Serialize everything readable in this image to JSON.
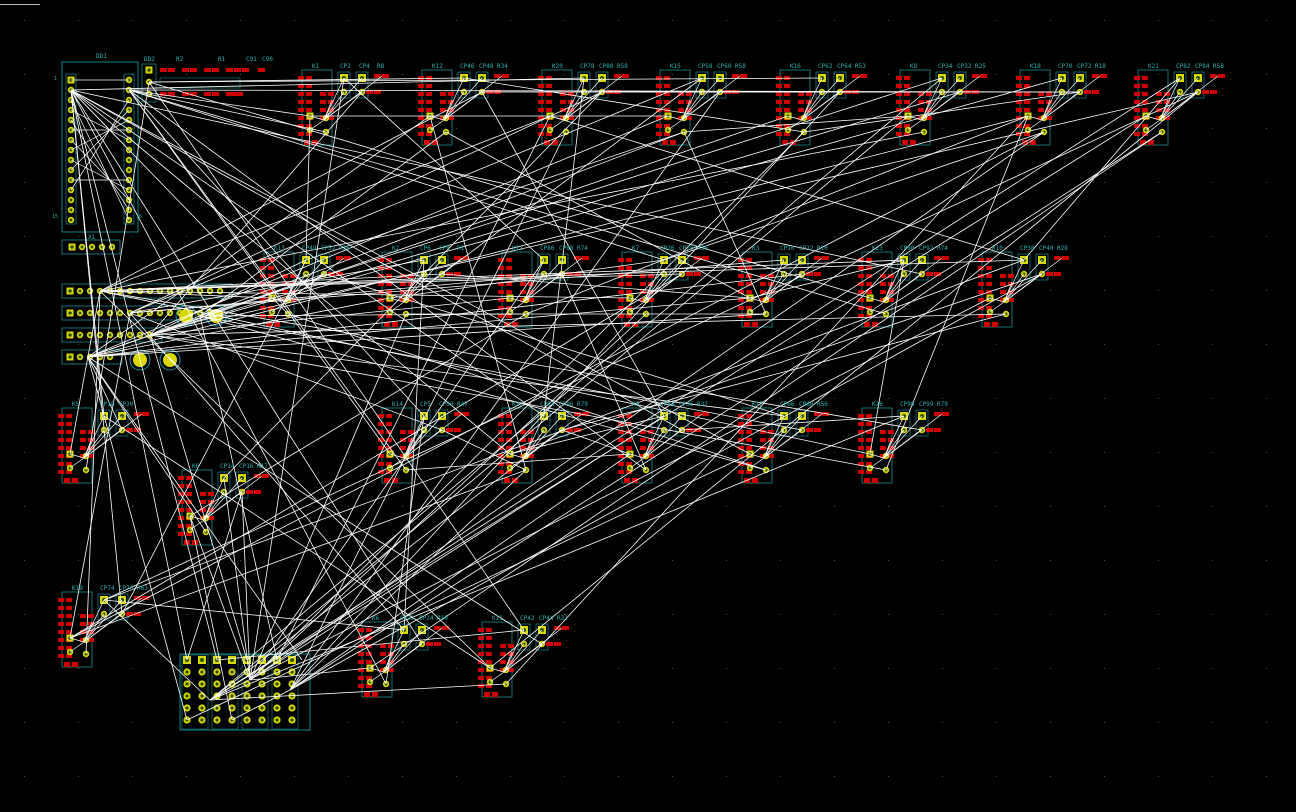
{
  "app": {
    "name": "PCB layout view"
  },
  "colors": {
    "background": "#000000",
    "pad": "#d8d800",
    "pad_center": "#2c5200",
    "smd_pad": "#d00000",
    "outline": "#1aa3a3",
    "ratsnest": "#ffffff",
    "label": "#29b3b3",
    "hole_ring": "#1a8fa0"
  },
  "header_labels": {
    "connector": "DD1",
    "pin_first": "1",
    "pin_last_left": "15",
    "pin_last_right": "16"
  },
  "connector_x1": {
    "label": "X1"
  },
  "row1": {
    "prefix_parts": [
      {
        "label": "DD2"
      },
      {
        "label": "R2"
      },
      {
        "label": "R1"
      },
      {
        "label": "C91"
      },
      {
        "label": "C90"
      }
    ],
    "blocks": [
      {
        "ref": "K1",
        "c1": "CP2",
        "c2": "CP4",
        "r": "R8"
      },
      {
        "ref": "K12",
        "c1": "CP46",
        "c2": "CP48",
        "r": "R34"
      },
      {
        "ref": "K20",
        "c1": "CP78",
        "c2": "CP80",
        "r": "R58"
      },
      {
        "ref": "K15",
        "c1": "CP58",
        "c2": "CP60",
        "r": "R58"
      },
      {
        "ref": "K16",
        "c1": "CP62",
        "c2": "CP64",
        "r": "R53"
      },
      {
        "ref": "K8",
        "c1": "CP34",
        "c2": "CP32",
        "r": "R25"
      },
      {
        "ref": "K18",
        "c1": "CP70",
        "c2": "CP72",
        "r": "R18"
      },
      {
        "ref": "K21",
        "c1": "CP82",
        "c2": "CP84",
        "r": "R58"
      }
    ]
  },
  "row2": {
    "blocks": [
      {
        "ref": "K13",
        "c1": "CP49",
        "c2": "CP52",
        "r": "R36"
      },
      {
        "ref": "K2",
        "c1": "CP6",
        "c2": "CP8",
        "r": "R1"
      },
      {
        "ref": "K22",
        "c1": "CP86",
        "c2": "CP88",
        "r": "R74"
      },
      {
        "ref": "K7",
        "c1": "CP26",
        "c2": "CP28",
        "r": "R36"
      },
      {
        "ref": "K3",
        "c1": "CP10",
        "c2": "CP12",
        "r": "R10"
      },
      {
        "ref": "K23",
        "c1": "CP90",
        "c2": "CP92",
        "r": "R74"
      },
      {
        "ref": "K10",
        "c1": "CP38",
        "c2": "CP40",
        "r": "R28"
      }
    ]
  },
  "row3": {
    "blocks": [
      {
        "ref": "K5",
        "c1": "CP18",
        "c2": "CP20",
        "r": ""
      },
      {
        "ref": "K14",
        "c1": "CP5",
        "c2": "CP56",
        "r": "R47"
      },
      {
        "ref": "K21",
        "c1": "CP94",
        "c2": "CP96",
        "r": "R79"
      },
      {
        "ref": "K9",
        "c1": "CP34",
        "c2": "CP36",
        "r": "R37"
      },
      {
        "ref": "K17",
        "c1": "CP66",
        "c2": "CP68",
        "r": "R56"
      },
      {
        "ref": "K26",
        "c1": "CP98",
        "c2": "CP99",
        "r": "R79"
      }
    ]
  },
  "row4": {
    "blocks": [
      {
        "ref": "K6",
        "c1": "CP14",
        "c2": "CP16",
        "r": "R17"
      },
      {
        "ref": "K19",
        "c1": "CP74",
        "c2": "CP76",
        "r": "R63"
      },
      {
        "ref": "K6",
        "c1": "CP22",
        "c2": "CP24",
        "r": "R10"
      },
      {
        "ref": "K11",
        "c1": "CP42",
        "c2": "CP44",
        "r": "R31"
      }
    ]
  },
  "status": {}
}
